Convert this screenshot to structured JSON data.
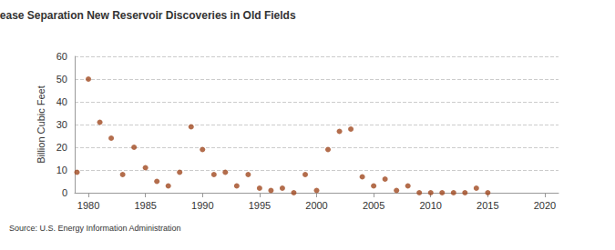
{
  "chart_data": {
    "type": "scatter",
    "title": "Annual Mississippi Natural Gas, Wet After Lease Separation New Reservoir Discoveries in Old Fields",
    "y_label": "Billion Cubic Feet",
    "source": "Source: U.S. Energy Information Administration",
    "x": [
      1979,
      1980,
      1981,
      1982,
      1983,
      1984,
      1985,
      1986,
      1987,
      1988,
      1989,
      1990,
      1991,
      1992,
      1993,
      1994,
      1995,
      1996,
      1997,
      1998,
      1999,
      2000,
      2001,
      2002,
      2003,
      2004,
      2005,
      2006,
      2007,
      2008,
      2009,
      2010,
      2011,
      2012,
      2013,
      2014,
      2015
    ],
    "values": [
      9,
      50,
      31,
      24,
      8,
      20,
      11,
      5,
      3,
      9,
      29,
      19,
      8,
      9,
      3,
      8,
      2,
      1,
      2,
      0,
      8,
      1,
      19,
      27,
      28,
      7,
      3,
      6,
      1,
      3,
      0,
      0,
      0,
      0,
      0,
      2,
      0
    ],
    "color": "#a0491f",
    "marker": "circle",
    "xlim": [
      1978.8,
      2021.2
    ],
    "xticks": [
      1980,
      1985,
      1990,
      1995,
      2000,
      2005,
      2010,
      2015,
      2020
    ],
    "ylim": [
      0,
      60
    ],
    "yticks": [
      0,
      10,
      20,
      30,
      40,
      50,
      60
    ],
    "grid": true
  }
}
